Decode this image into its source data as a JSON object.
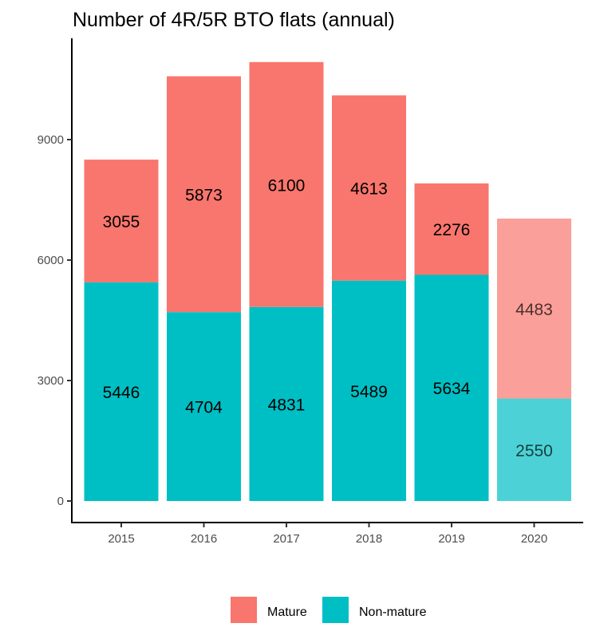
{
  "chart_data": {
    "type": "bar",
    "stacked": true,
    "title": "Number of 4R/5R BTO flats (annual)",
    "xlabel": "",
    "ylabel": "",
    "categories": [
      "2015",
      "2016",
      "2017",
      "2018",
      "2019",
      "2020"
    ],
    "series": [
      {
        "name": "Non-mature",
        "color": "#00BFC4",
        "values": [
          5446,
          4704,
          4831,
          5489,
          5634,
          2550
        ]
      },
      {
        "name": "Mature",
        "color": "#F8766D",
        "values": [
          3055,
          5873,
          6100,
          4613,
          2276,
          4483
        ]
      }
    ],
    "highlight_faded_categories": [
      "2020"
    ],
    "ylim": [
      0,
      11000
    ],
    "yticks": [
      0,
      3000,
      6000,
      9000
    ],
    "ytick_labels": [
      "0",
      "3000",
      "6000",
      "9000"
    ],
    "grid": false,
    "legend": {
      "position": "bottom",
      "entries": [
        {
          "label": "Mature",
          "color": "#F8766D"
        },
        {
          "label": "Non-mature",
          "color": "#00BFC4"
        }
      ]
    }
  }
}
